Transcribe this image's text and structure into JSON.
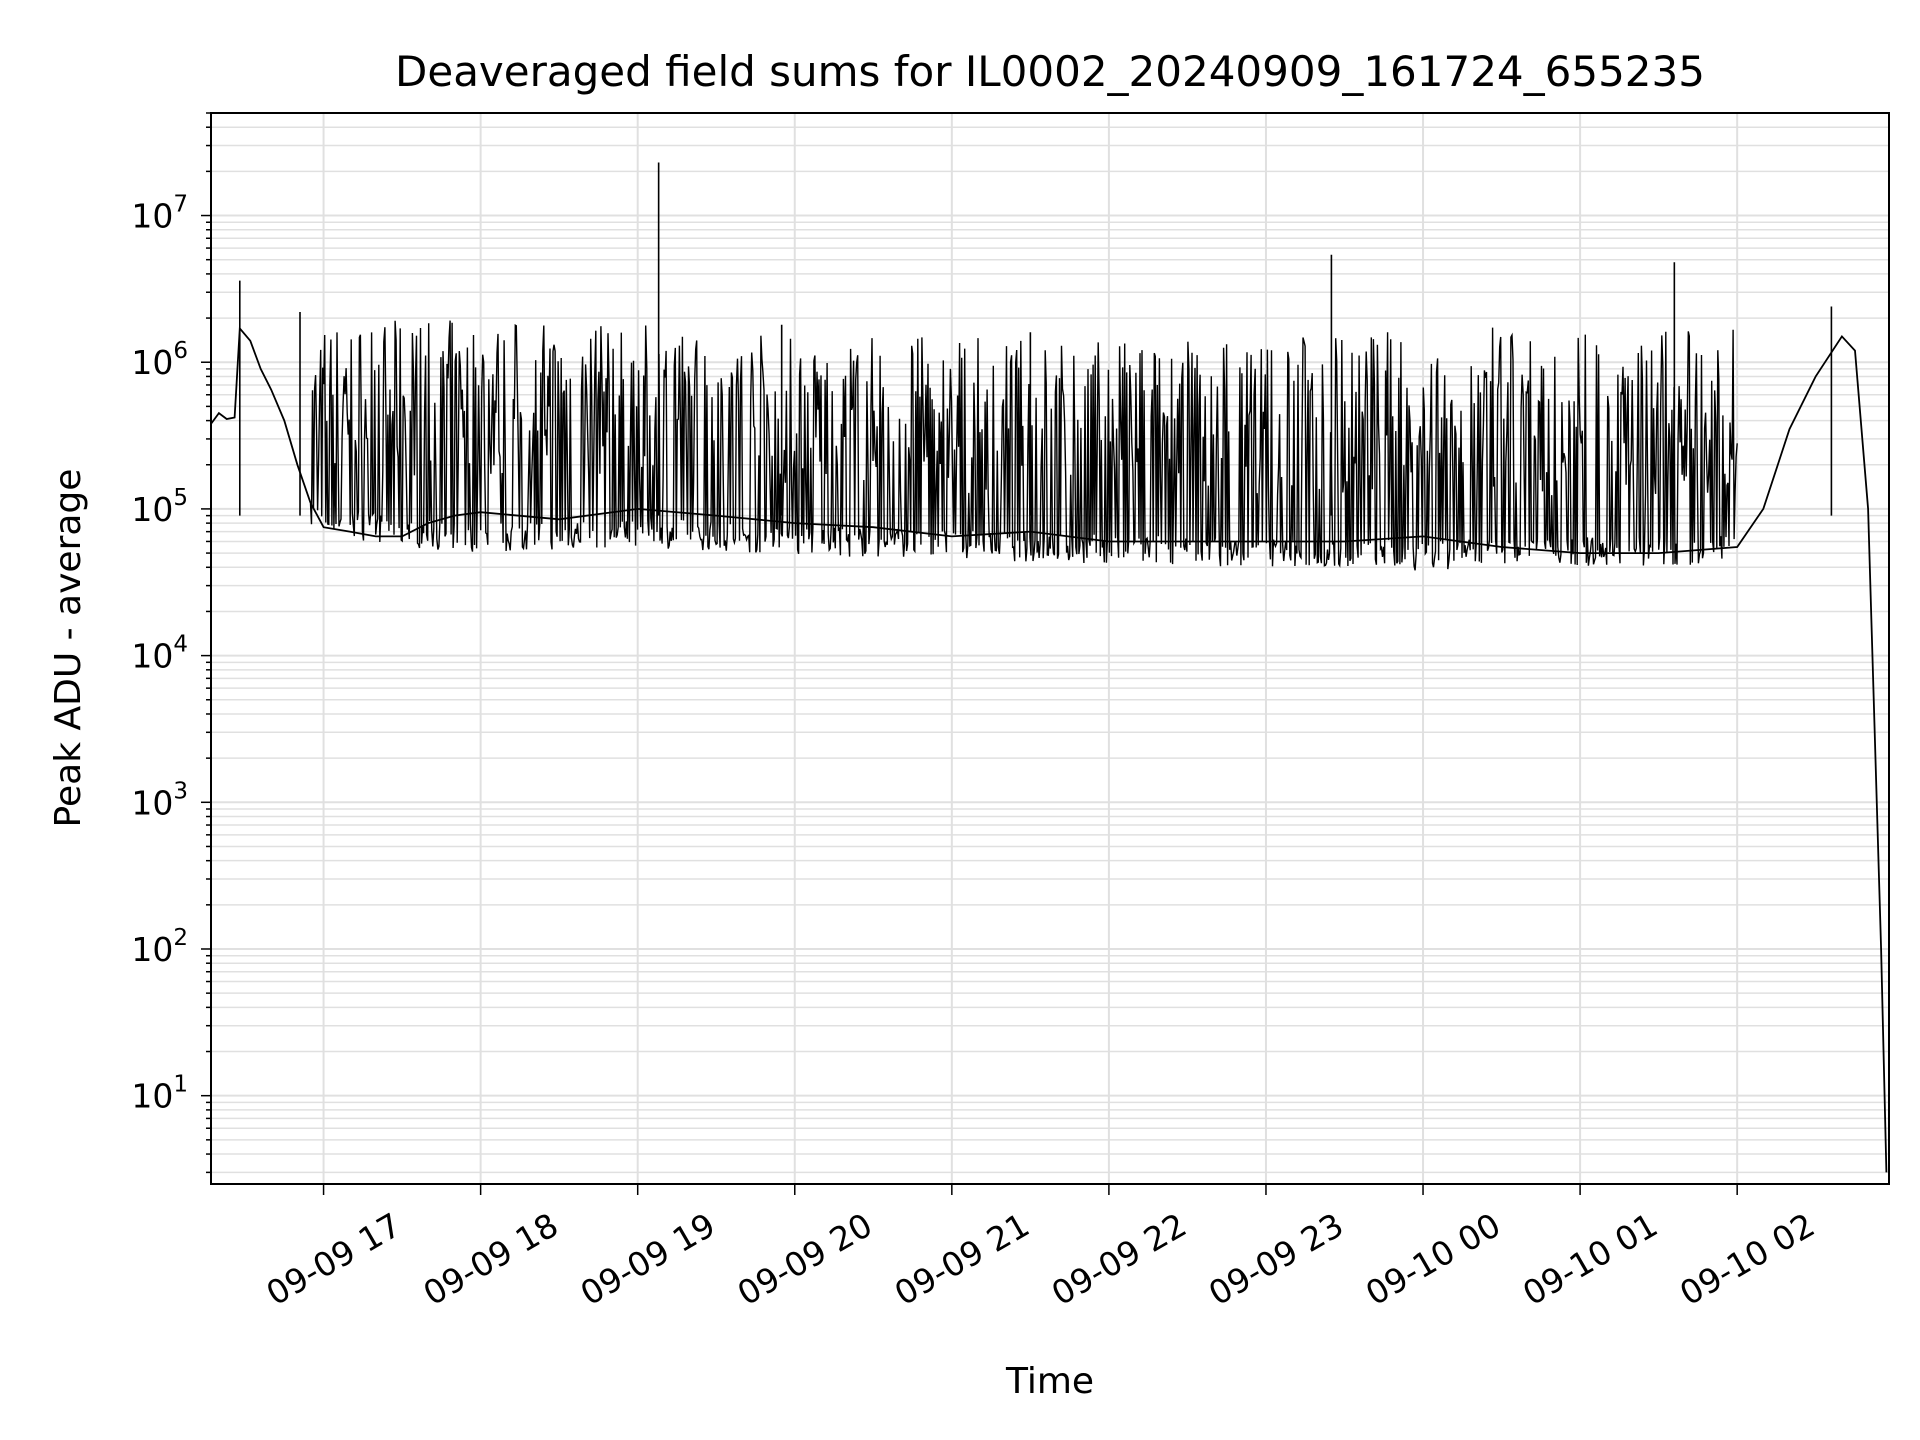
{
  "chart_data": {
    "type": "line",
    "title": "Deaveraged field sums for IL0002_20240909_161724_655235",
    "xlabel": "Time",
    "ylabel": "Peak ADU - average",
    "yscale": "log",
    "ylim": [
      2.5,
      50000000
    ],
    "xlim": [
      "2024-09-09 16:17",
      "2024-09-10 02:58"
    ],
    "grid": true,
    "line_color": "#000000",
    "grid_color": "#e0e0e0",
    "x_ticks": [
      {
        "t": "2024-09-09 17:00",
        "label": "09-09 17"
      },
      {
        "t": "2024-09-09 18:00",
        "label": "09-09 18"
      },
      {
        "t": "2024-09-09 19:00",
        "label": "09-09 19"
      },
      {
        "t": "2024-09-09 20:00",
        "label": "09-09 20"
      },
      {
        "t": "2024-09-09 21:00",
        "label": "09-09 21"
      },
      {
        "t": "2024-09-09 22:00",
        "label": "09-09 22"
      },
      {
        "t": "2024-09-09 23:00",
        "label": "09-09 23"
      },
      {
        "t": "2024-09-10 00:00",
        "label": "09-10 00"
      },
      {
        "t": "2024-09-10 01:00",
        "label": "09-10 01"
      },
      {
        "t": "2024-09-10 02:00",
        "label": "09-10 02"
      }
    ],
    "y_ticks": [
      {
        "v": 10,
        "base": "10",
        "exp": "1"
      },
      {
        "v": 100,
        "base": "10",
        "exp": "2"
      },
      {
        "v": 1000,
        "base": "10",
        "exp": "3"
      },
      {
        "v": 10000,
        "base": "10",
        "exp": "4"
      },
      {
        "v": 100000,
        "base": "10",
        "exp": "5"
      },
      {
        "v": 1000000,
        "base": "10",
        "exp": "6"
      },
      {
        "v": 10000000,
        "base": "10",
        "exp": "7"
      }
    ],
    "series": [
      {
        "points": [
          [
            "2024-09-09 16:17",
            380000
          ],
          [
            "2024-09-09 16:20",
            450000
          ],
          [
            "2024-09-09 16:23",
            410000
          ],
          [
            "2024-09-09 16:26",
            420000
          ],
          [
            "2024-09-09 16:28",
            1700000
          ],
          [
            "2024-09-09 16:32",
            1400000
          ],
          [
            "2024-09-09 16:36",
            900000
          ],
          [
            "2024-09-09 16:40",
            650000
          ],
          [
            "2024-09-09 16:45",
            400000
          ],
          [
            "2024-09-09 16:50",
            200000
          ],
          [
            "2024-09-09 16:55",
            110000
          ],
          [
            "2024-09-09 17:00",
            75000
          ],
          [
            "2024-09-09 17:10",
            70000
          ],
          [
            "2024-09-09 17:20",
            65000
          ],
          [
            "2024-09-09 17:30",
            65000
          ],
          [
            "2024-09-09 17:40",
            80000
          ],
          [
            "2024-09-09 17:50",
            90000
          ],
          [
            "2024-09-09 18:00",
            95000
          ],
          [
            "2024-09-09 18:30",
            85000
          ],
          [
            "2024-09-09 19:00",
            100000
          ],
          [
            "2024-09-09 19:30",
            90000
          ],
          [
            "2024-09-09 20:00",
            80000
          ],
          [
            "2024-09-09 20:30",
            75000
          ],
          [
            "2024-09-09 21:00",
            65000
          ],
          [
            "2024-09-09 21:30",
            70000
          ],
          [
            "2024-09-09 22:00",
            60000
          ],
          [
            "2024-09-09 22:30",
            60000
          ],
          [
            "2024-09-09 23:00",
            60000
          ],
          [
            "2024-09-09 23:30",
            60000
          ],
          [
            "2024-09-10 00:00",
            65000
          ],
          [
            "2024-09-10 00:30",
            55000
          ],
          [
            "2024-09-10 01:00",
            50000
          ],
          [
            "2024-09-10 01:30",
            50000
          ],
          [
            "2024-09-10 02:00",
            55000
          ],
          [
            "2024-09-10 02:10",
            100000
          ],
          [
            "2024-09-10 02:20",
            350000
          ],
          [
            "2024-09-10 02:30",
            800000
          ],
          [
            "2024-09-10 02:40",
            1500000
          ],
          [
            "2024-09-10 02:45",
            1200000
          ],
          [
            "2024-09-10 02:50",
            100000
          ],
          [
            "2024-09-10 02:55",
            100
          ],
          [
            "2024-09-10 02:57",
            3
          ]
        ],
        "spikes": [
          [
            "2024-09-09 16:28",
            3600000
          ],
          [
            "2024-09-09 16:51",
            2200000
          ],
          [
            "2024-09-09 19:08",
            23000000
          ],
          [
            "2024-09-09 19:55",
            1800000
          ],
          [
            "2024-09-09 21:30",
            1600000
          ],
          [
            "2024-09-09 23:25",
            5400000
          ],
          [
            "2024-09-10 01:36",
            4800000
          ],
          [
            "2024-09-10 02:36",
            2400000
          ]
        ],
        "band_low": [
          [
            "2024-09-09 16:55",
            70000
          ],
          [
            "2024-09-09 17:30",
            55000
          ],
          [
            "2024-09-09 18:00",
            50000
          ],
          [
            "2024-09-09 19:00",
            55000
          ],
          [
            "2024-09-09 20:00",
            48000
          ],
          [
            "2024-09-09 21:00",
            45000
          ],
          [
            "2024-09-09 22:00",
            42000
          ],
          [
            "2024-09-09 23:00",
            40000
          ],
          [
            "2024-09-10 00:00",
            38000
          ],
          [
            "2024-09-10 01:00",
            40000
          ],
          [
            "2024-09-10 02:00",
            42000
          ]
        ],
        "band_high": [
          [
            "2024-09-09 17:00",
            1900000
          ],
          [
            "2024-09-09 18:00",
            2000000
          ],
          [
            "2024-09-09 19:00",
            1800000
          ],
          [
            "2024-09-09 20:00",
            1600000
          ],
          [
            "2024-09-09 21:00",
            1500000
          ],
          [
            "2024-09-09 22:00",
            1400000
          ],
          [
            "2024-09-09 23:00",
            1500000
          ],
          [
            "2024-09-10 00:00",
            1800000
          ],
          [
            "2024-09-10 01:00",
            1700000
          ],
          [
            "2024-09-10 02:00",
            1700000
          ]
        ]
      }
    ]
  }
}
